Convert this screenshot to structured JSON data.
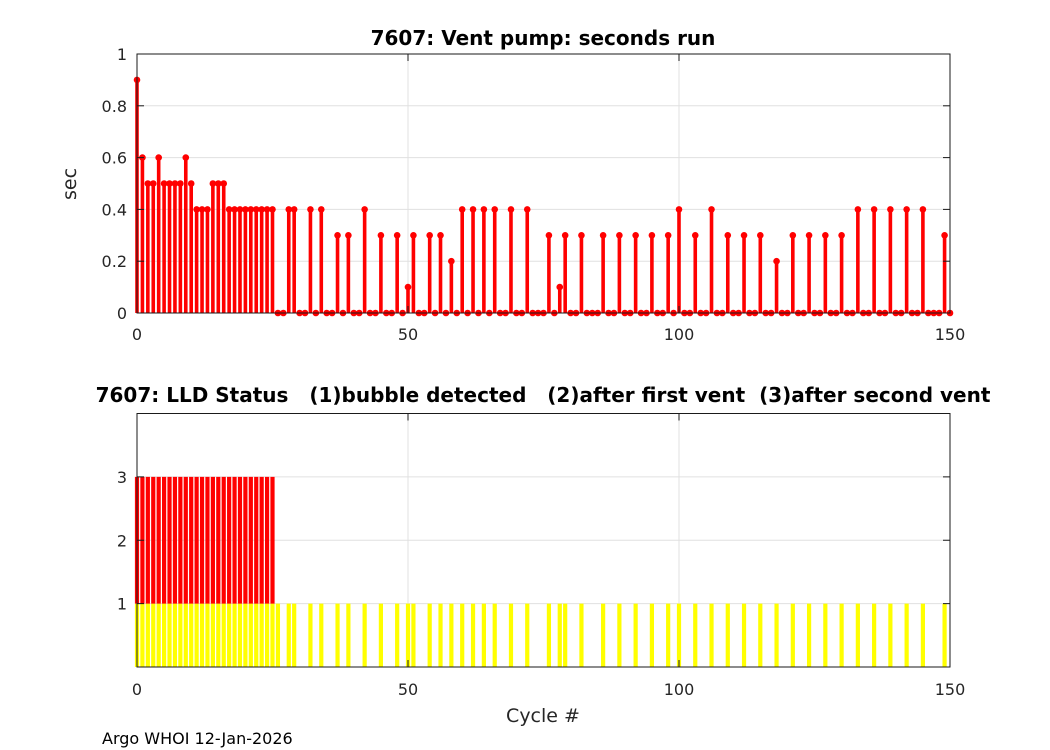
{
  "footer": {
    "text": "Argo WHOI 12-Jan-2026"
  },
  "colors": {
    "stem": "#ff0000",
    "status_high": "#ff0000",
    "status_low": "#ffff00",
    "grid": "#e0e0e0",
    "axis": "#1a1a1a",
    "tick_text": "#262626",
    "title_text": "#000000",
    "background": "#ffffff"
  },
  "chart_data": [
    {
      "type": "stem",
      "title": "7607: Vent pump: seconds run",
      "xlabel": "",
      "ylabel": "sec",
      "xlim": [
        0,
        150
      ],
      "ylim": [
        0,
        1
      ],
      "xticks": [
        0,
        50,
        100,
        150
      ],
      "yticks": [
        0,
        0.2,
        0.4,
        0.6,
        0.8,
        1
      ],
      "grid": true,
      "legend": "none",
      "color": "#ff0000",
      "values": [
        0.9,
        0.6,
        0.5,
        0.5,
        0.6,
        0.5,
        0.5,
        0.5,
        0.5,
        0.6,
        0.5,
        0.4,
        0.4,
        0.4,
        0.5,
        0.5,
        0.5,
        0.4,
        0.4,
        0.4,
        0.4,
        0.4,
        0.4,
        0.4,
        0.4,
        0.4,
        0,
        0,
        0.4,
        0.4,
        0,
        0,
        0.4,
        0,
        0.4,
        0,
        0,
        0.3,
        0,
        0.3,
        0,
        0,
        0.4,
        0,
        0,
        0.3,
        0,
        0,
        0.3,
        0,
        0.1,
        0.3,
        0,
        0,
        0.3,
        0,
        0.3,
        0,
        0.2,
        0,
        0.4,
        0,
        0.4,
        0,
        0.4,
        0,
        0.4,
        0,
        0,
        0.4,
        0,
        0,
        0.4,
        0,
        0,
        0,
        0.3,
        0,
        0.1,
        0.3,
        0,
        0,
        0.3,
        0,
        0,
        0,
        0.3,
        0,
        0,
        0.3,
        0,
        0,
        0.3,
        0,
        0,
        0.3,
        0,
        0,
        0.3,
        0,
        0.4,
        0,
        0,
        0.3,
        0,
        0,
        0.4,
        0,
        0,
        0.3,
        0,
        0,
        0.3,
        0,
        0,
        0.3,
        0,
        0,
        0.2,
        0,
        0,
        0.3,
        0,
        0,
        0.3,
        0,
        0,
        0.3,
        0,
        0,
        0.3,
        0,
        0,
        0.4,
        0,
        0,
        0.4,
        0,
        0,
        0.4,
        0,
        0,
        0.4,
        0,
        0,
        0.4,
        0,
        0,
        0,
        0.3,
        0
      ]
    },
    {
      "type": "bar",
      "title": "7607: LLD Status   (1)bubble detected   (2)after first vent  (3)after second vent",
      "xlabel": "Cycle #",
      "ylabel": "",
      "xlim": [
        0,
        150
      ],
      "ylim": [
        0,
        4
      ],
      "xticks": [
        0,
        50,
        100,
        150
      ],
      "yticks": [
        1,
        2,
        3
      ],
      "grid": true,
      "legend": "none",
      "series": [
        {
          "name": "status 3 segment (drawn from y=1 to y=3)",
          "color": "#ff0000"
        },
        {
          "name": "status 1 segment (drawn from y=0 to y=1)",
          "color": "#ffff00"
        }
      ],
      "values": [
        3,
        3,
        3,
        3,
        3,
        3,
        3,
        3,
        3,
        3,
        3,
        3,
        3,
        3,
        3,
        3,
        3,
        3,
        3,
        3,
        3,
        3,
        3,
        3,
        3,
        3,
        1,
        0,
        1,
        1,
        0,
        0,
        1,
        0,
        1,
        0,
        0,
        1,
        0,
        1,
        0,
        0,
        1,
        0,
        0,
        1,
        0,
        0,
        1,
        0,
        1,
        1,
        0,
        0,
        1,
        0,
        1,
        0,
        1,
        0,
        1,
        0,
        1,
        0,
        1,
        0,
        1,
        0,
        0,
        1,
        0,
        0,
        1,
        0,
        0,
        0,
        1,
        0,
        1,
        1,
        0,
        0,
        1,
        0,
        0,
        0,
        1,
        0,
        0,
        1,
        0,
        0,
        1,
        0,
        0,
        1,
        0,
        0,
        1,
        0,
        1,
        0,
        0,
        1,
        0,
        0,
        1,
        0,
        0,
        1,
        0,
        0,
        1,
        0,
        0,
        1,
        0,
        0,
        1,
        0,
        0,
        1,
        0,
        0,
        1,
        0,
        0,
        1,
        0,
        0,
        1,
        0,
        0,
        1,
        0,
        0,
        1,
        0,
        0,
        1,
        0,
        0,
        1,
        0,
        0,
        1,
        0,
        0,
        0,
        1,
        0
      ]
    }
  ]
}
